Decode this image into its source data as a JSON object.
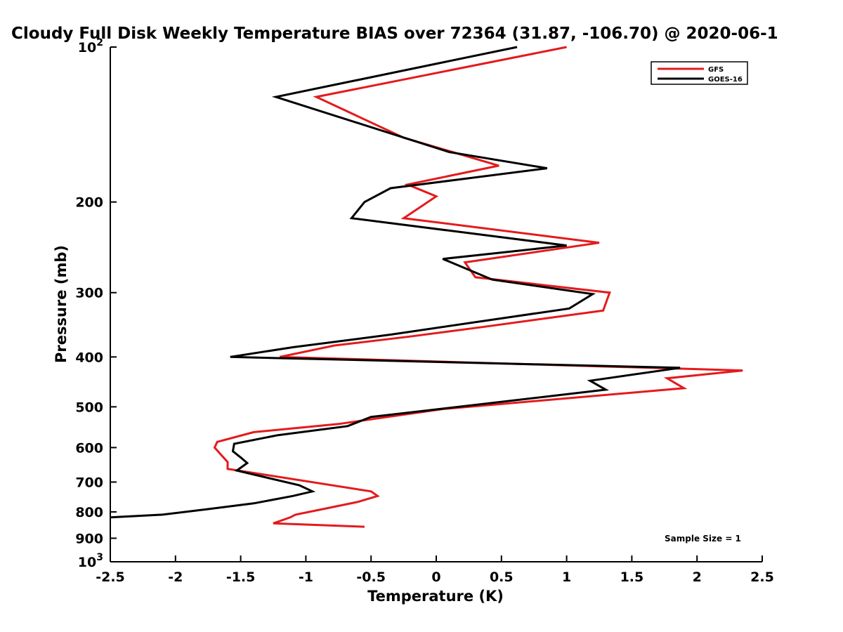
{
  "chart_data": {
    "type": "line",
    "title": "Cloudy Full Disk Weekly Temperature BIAS over 72364 (31.87, -106.70) @ 2020-06-1",
    "xlabel": "Temperature (K)",
    "ylabel": "Pressure (mb)",
    "xlim": [
      -2.5,
      2.5
    ],
    "ylim": [
      100,
      1000
    ],
    "y_scale": "log",
    "y_reversed": true,
    "grid": false,
    "legend_position": "top-right",
    "x_ticks": [
      {
        "value": -2.5,
        "label": "-2.5"
      },
      {
        "value": -2,
        "label": "-2"
      },
      {
        "value": -1.5,
        "label": "-1.5"
      },
      {
        "value": -1,
        "label": "-1"
      },
      {
        "value": -0.5,
        "label": "-0.5"
      },
      {
        "value": 0,
        "label": "0"
      },
      {
        "value": 0.5,
        "label": "0.5"
      },
      {
        "value": 1,
        "label": "1"
      },
      {
        "value": 1.5,
        "label": "1.5"
      },
      {
        "value": 2,
        "label": "2"
      },
      {
        "value": 2.5,
        "label": "2.5"
      }
    ],
    "y_ticks": [
      {
        "value": 100,
        "label": "10",
        "sup": "2"
      },
      {
        "value": 200,
        "label": "200",
        "sup": ""
      },
      {
        "value": 300,
        "label": "300",
        "sup": ""
      },
      {
        "value": 400,
        "label": "400",
        "sup": ""
      },
      {
        "value": 500,
        "label": "500",
        "sup": ""
      },
      {
        "value": 600,
        "label": "600",
        "sup": ""
      },
      {
        "value": 700,
        "label": "700",
        "sup": ""
      },
      {
        "value": 800,
        "label": "800",
        "sup": ""
      },
      {
        "value": 900,
        "label": "900",
        "sup": ""
      },
      {
        "value": 1000,
        "label": "10",
        "sup": "3"
      }
    ],
    "series": [
      {
        "name": "GFS",
        "color": "#e41a1c",
        "points": [
          [
            1.0,
            100
          ],
          [
            -0.92,
            125
          ],
          [
            -0.25,
            150
          ],
          [
            0.48,
            170
          ],
          [
            -0.22,
            185
          ],
          [
            0.0,
            195
          ],
          [
            -0.25,
            215
          ],
          [
            1.25,
            240
          ],
          [
            0.22,
            262
          ],
          [
            0.3,
            280
          ],
          [
            1.33,
            300
          ],
          [
            1.28,
            325
          ],
          [
            0.35,
            350
          ],
          [
            -0.2,
            365
          ],
          [
            -0.78,
            380
          ],
          [
            -1.2,
            400
          ],
          [
            2.35,
            425
          ],
          [
            1.77,
            440
          ],
          [
            1.9,
            460
          ],
          [
            0.05,
            505
          ],
          [
            -0.75,
            540
          ],
          [
            -1.4,
            560
          ],
          [
            -1.68,
            585
          ],
          [
            -1.7,
            600
          ],
          [
            -1.65,
            620
          ],
          [
            -1.6,
            640
          ],
          [
            -1.6,
            660
          ],
          [
            -0.5,
            730
          ],
          [
            -0.45,
            745
          ],
          [
            -0.6,
            765
          ],
          [
            -0.87,
            790
          ],
          [
            -1.08,
            810
          ],
          [
            -1.12,
            820
          ],
          [
            -1.25,
            842
          ],
          [
            -0.55,
            855
          ]
        ]
      },
      {
        "name": "GOES-16",
        "color": "#000000",
        "points": [
          [
            0.62,
            100
          ],
          [
            -1.23,
            125
          ],
          [
            0.1,
            160
          ],
          [
            0.85,
            172
          ],
          [
            -0.35,
            188
          ],
          [
            -0.55,
            200
          ],
          [
            -0.65,
            215
          ],
          [
            1.0,
            243
          ],
          [
            0.05,
            258
          ],
          [
            0.43,
            283
          ],
          [
            1.2,
            302
          ],
          [
            1.02,
            322
          ],
          [
            0.38,
            340
          ],
          [
            -0.35,
            362
          ],
          [
            -1.1,
            383
          ],
          [
            -1.58,
            400
          ],
          [
            1.87,
            420
          ],
          [
            1.18,
            445
          ],
          [
            1.3,
            463
          ],
          [
            -0.12,
            510
          ],
          [
            -0.5,
            523
          ],
          [
            -0.68,
            545
          ],
          [
            -1.22,
            568
          ],
          [
            -1.55,
            590
          ],
          [
            -1.56,
            610
          ],
          [
            -1.5,
            627
          ],
          [
            -1.45,
            643
          ],
          [
            -1.53,
            665
          ],
          [
            -1.05,
            710
          ],
          [
            -0.95,
            730
          ],
          [
            -1.1,
            745
          ],
          [
            -1.4,
            770
          ],
          [
            -1.75,
            790
          ],
          [
            -2.1,
            810
          ],
          [
            -2.5,
            820
          ]
        ]
      }
    ],
    "annotations": [
      {
        "text": "Sample Size = 1"
      }
    ]
  }
}
